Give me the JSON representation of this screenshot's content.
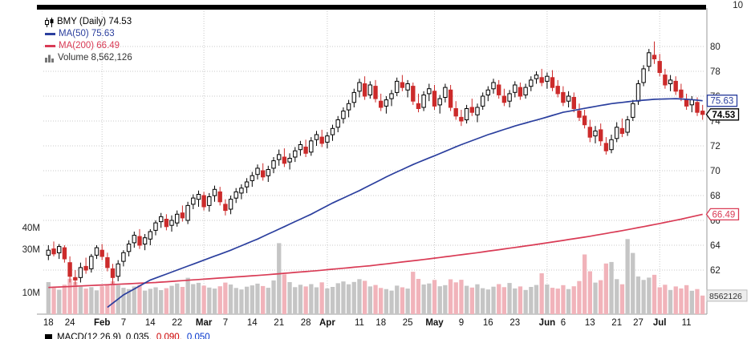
{
  "header": {
    "symbol_label": "BMY (Daily) 74.53",
    "ma50_label": "MA(50) 75.63",
    "ma200_label": "MA(200) 66.49",
    "volume_label": "Volume 8,562,126"
  },
  "axis": {
    "top_partial_label": "10",
    "ma50_box": "75.63",
    "last_price_box": "74.53",
    "ma200_box": "66.49",
    "volume_box": "8562126"
  },
  "footer": {
    "macd": {
      "label": "MACD(12,26,9)",
      "v1": "0.035,",
      "v2": "0.090,",
      "v3": "0.050"
    }
  },
  "colors": {
    "ma50": "#2b3f9e",
    "ma200": "#d93b55",
    "down": "#cc2b2b",
    "up_fill": "#ffffff",
    "up_stroke": "#000000",
    "vol_up": "#c5c5c5",
    "vol_down": "#f1b3ba",
    "grid": "#c9c9c9",
    "axis_text": "#222222",
    "macd_v2": "#cc0000",
    "macd_v3": "#0033cc"
  },
  "chart_data": {
    "type": "candlestick",
    "title": "BMY (Daily)",
    "last_close": 74.53,
    "price_axis": {
      "min": 62,
      "max": 80,
      "step": 2
    },
    "price_ticks": [
      80,
      78,
      76,
      74,
      72,
      70,
      68,
      66,
      64,
      62
    ],
    "volume_ticks": [
      {
        "label": "40M",
        "value": 40
      },
      {
        "label": "30M",
        "value": 30
      },
      {
        "label": "10M",
        "value": 10
      }
    ],
    "grid": "dotted",
    "legend_position": "top-left",
    "candle_fields": [
      "date",
      "open",
      "high",
      "low",
      "close",
      "volume_millions"
    ],
    "month_start_indices": [
      10,
      29,
      52,
      72,
      93,
      114
    ],
    "xticks": [
      {
        "label": "18",
        "i": 0
      },
      {
        "label": "24",
        "i": 4
      },
      {
        "label": "Feb",
        "i": 10,
        "bold": true
      },
      {
        "label": "7",
        "i": 14
      },
      {
        "label": "14",
        "i": 19
      },
      {
        "label": "22",
        "i": 24
      },
      {
        "label": "Mar",
        "i": 29,
        "bold": true
      },
      {
        "label": "7",
        "i": 33
      },
      {
        "label": "14",
        "i": 38
      },
      {
        "label": "21",
        "i": 43
      },
      {
        "label": "28",
        "i": 48
      },
      {
        "label": "Apr",
        "i": 52,
        "bold": true
      },
      {
        "label": "11",
        "i": 58
      },
      {
        "label": "18",
        "i": 62
      },
      {
        "label": "25",
        "i": 67
      },
      {
        "label": "May",
        "i": 72,
        "bold": true
      },
      {
        "label": "9",
        "i": 77
      },
      {
        "label": "16",
        "i": 82
      },
      {
        "label": "23",
        "i": 87
      },
      {
        "label": "Jun",
        "i": 93,
        "bold": true
      },
      {
        "label": "6",
        "i": 96
      },
      {
        "label": "13",
        "i": 101
      },
      {
        "label": "21",
        "i": 106
      },
      {
        "label": "27",
        "i": 110
      },
      {
        "label": "Jul",
        "i": 114,
        "bold": true
      },
      {
        "label": "11",
        "i": 119
      }
    ],
    "ma50": {
      "name": "MA(50)",
      "last": 75.63,
      "points": [
        [
          11,
          59.0
        ],
        [
          14,
          60.0
        ],
        [
          19,
          61.2
        ],
        [
          24,
          62.0
        ],
        [
          29,
          62.8
        ],
        [
          34,
          63.6
        ],
        [
          39,
          64.5
        ],
        [
          44,
          65.5
        ],
        [
          49,
          66.5
        ],
        [
          53,
          67.4
        ],
        [
          58,
          68.4
        ],
        [
          63,
          69.5
        ],
        [
          68,
          70.5
        ],
        [
          72,
          71.2
        ],
        [
          77,
          72.1
        ],
        [
          82,
          72.9
        ],
        [
          87,
          73.6
        ],
        [
          92,
          74.2
        ],
        [
          96,
          74.7
        ],
        [
          101,
          75.1
        ],
        [
          105,
          75.4
        ],
        [
          109,
          75.6
        ],
        [
          113,
          75.75
        ],
        [
          117,
          75.8
        ],
        [
          120,
          75.72
        ],
        [
          122,
          75.63
        ]
      ]
    },
    "ma200": {
      "name": "MA(200)",
      "last": 66.49,
      "points": [
        [
          0,
          60.6
        ],
        [
          10,
          60.8
        ],
        [
          20,
          61.0
        ],
        [
          30,
          61.3
        ],
        [
          40,
          61.6
        ],
        [
          50,
          61.95
        ],
        [
          60,
          62.35
        ],
        [
          70,
          62.85
        ],
        [
          80,
          63.4
        ],
        [
          90,
          64.0
        ],
        [
          100,
          64.65
        ],
        [
          108,
          65.25
        ],
        [
          114,
          65.75
        ],
        [
          118,
          66.1
        ],
        [
          122,
          66.49
        ]
      ]
    },
    "last_volume_millions": 8.56,
    "candles": [
      [
        "Jan 18",
        63.2,
        64.0,
        62.8,
        63.6,
        14.8
      ],
      [
        "Jan 19",
        63.7,
        64.3,
        63.1,
        63.3,
        12.1
      ],
      [
        "Jan 20",
        63.4,
        64.1,
        62.9,
        63.9,
        11.3
      ],
      [
        "Jan 21",
        63.8,
        64.0,
        62.6,
        62.9,
        13.6
      ],
      [
        "Jan 24",
        62.6,
        63.1,
        61.0,
        61.5,
        16.4
      ],
      [
        "Jan 25",
        61.4,
        62.0,
        60.8,
        61.2,
        14.9
      ],
      [
        "Jan 26",
        61.4,
        62.6,
        61.0,
        62.2,
        12.7
      ],
      [
        "Jan 27",
        62.3,
        63.0,
        61.7,
        62.0,
        11.8
      ],
      [
        "Jan 28",
        62.1,
        63.3,
        61.8,
        63.1,
        12.5
      ],
      [
        "Jan 31",
        63.2,
        64.0,
        62.9,
        63.8,
        11.0
      ],
      [
        "Feb 1",
        63.6,
        64.1,
        62.8,
        63.1,
        12.9
      ],
      [
        "Feb 2",
        63.0,
        63.4,
        61.9,
        62.2,
        13.8
      ],
      [
        "Feb 3",
        62.1,
        62.5,
        60.9,
        61.4,
        15.2
      ],
      [
        "Feb 4",
        61.5,
        62.8,
        61.1,
        62.5,
        13.4
      ],
      [
        "Feb 7",
        62.7,
        63.6,
        62.3,
        63.4,
        12.2
      ],
      [
        "Feb 8",
        63.5,
        64.4,
        63.1,
        64.1,
        11.6
      ],
      [
        "Feb 9",
        64.2,
        65.1,
        63.8,
        64.8,
        12.8
      ],
      [
        "Feb 10",
        64.7,
        65.3,
        63.7,
        64.0,
        13.5
      ],
      [
        "Feb 11",
        64.1,
        64.9,
        63.6,
        64.6,
        10.9
      ],
      [
        "Feb 14",
        64.5,
        65.3,
        64.0,
        65.1,
        11.7
      ],
      [
        "Feb 15",
        65.2,
        66.0,
        64.8,
        65.8,
        12.4
      ],
      [
        "Feb 16",
        65.9,
        66.6,
        65.4,
        66.3,
        11.1
      ],
      [
        "Feb 17",
        66.1,
        66.5,
        65.2,
        65.5,
        12.0
      ],
      [
        "Feb 18",
        65.6,
        66.4,
        65.1,
        66.0,
        13.1
      ],
      [
        "Feb 22",
        65.8,
        66.8,
        65.5,
        66.5,
        14.2
      ],
      [
        "Feb 23",
        66.6,
        67.2,
        65.9,
        66.2,
        12.6
      ],
      [
        "Feb 24",
        66.0,
        67.5,
        65.7,
        67.2,
        16.8
      ],
      [
        "Feb 25",
        67.3,
        68.1,
        66.9,
        67.8,
        13.9
      ],
      [
        "Feb 28",
        67.7,
        68.4,
        67.1,
        68.1,
        14.5
      ],
      [
        "Mar 1",
        68.0,
        68.3,
        66.8,
        67.1,
        13.2
      ],
      [
        "Mar 2",
        67.2,
        68.2,
        66.7,
        67.9,
        12.3
      ],
      [
        "Mar 3",
        68.0,
        68.8,
        67.5,
        68.5,
        11.8
      ],
      [
        "Mar 4",
        68.3,
        68.7,
        67.2,
        67.5,
        12.9
      ],
      [
        "Mar 7",
        67.3,
        67.7,
        66.4,
        66.8,
        14.6
      ],
      [
        "Mar 8",
        66.9,
        68.0,
        66.5,
        67.7,
        13.7
      ],
      [
        "Mar 9",
        67.8,
        68.6,
        67.4,
        68.3,
        12.1
      ],
      [
        "Mar 10",
        68.2,
        68.9,
        67.7,
        68.6,
        11.4
      ],
      [
        "Mar 11",
        68.7,
        69.4,
        68.2,
        69.1,
        12.7
      ],
      [
        "Mar 14",
        69.2,
        69.9,
        68.7,
        69.6,
        13.3
      ],
      [
        "Mar 15",
        69.7,
        70.5,
        69.3,
        70.2,
        14.1
      ],
      [
        "Mar 16",
        70.0,
        70.6,
        69.2,
        69.5,
        13.0
      ],
      [
        "Mar 17",
        69.6,
        70.4,
        69.1,
        70.1,
        12.2
      ],
      [
        "Mar 18",
        70.2,
        71.1,
        69.8,
        70.8,
        15.6
      ],
      [
        "Mar 21",
        70.9,
        71.7,
        70.4,
        71.3,
        32.8
      ],
      [
        "Mar 22",
        71.1,
        71.8,
        70.3,
        70.6,
        18.4
      ],
      [
        "Mar 23",
        70.7,
        71.4,
        70.1,
        71.0,
        14.8
      ],
      [
        "Mar 24",
        71.1,
        71.9,
        70.7,
        71.6,
        12.5
      ],
      [
        "Mar 25",
        71.7,
        72.4,
        71.2,
        72.1,
        13.6
      ],
      [
        "Mar 28",
        71.9,
        72.5,
        71.1,
        71.4,
        12.8
      ],
      [
        "Mar 29",
        71.5,
        72.7,
        71.2,
        72.4,
        13.9
      ],
      [
        "Mar 30",
        72.5,
        73.2,
        72.0,
        72.9,
        12.4
      ],
      [
        "Mar 31",
        72.7,
        73.3,
        71.9,
        72.2,
        14.7
      ],
      [
        "Apr 1",
        72.3,
        73.1,
        71.8,
        72.8,
        11.9
      ],
      [
        "Apr 4",
        72.9,
        73.7,
        72.4,
        73.4,
        12.6
      ],
      [
        "Apr 5",
        73.5,
        74.4,
        73.1,
        74.1,
        14.3
      ],
      [
        "Apr 6",
        74.2,
        75.1,
        73.8,
        74.8,
        15.1
      ],
      [
        "Apr 7",
        74.9,
        75.7,
        74.3,
        75.4,
        13.8
      ],
      [
        "Apr 8",
        75.5,
        76.6,
        75.1,
        76.3,
        14.9
      ],
      [
        "Apr 11",
        76.4,
        77.4,
        75.9,
        77.1,
        16.2
      ],
      [
        "Apr 12",
        77.0,
        77.6,
        75.7,
        76.0,
        15.4
      ],
      [
        "Apr 13",
        76.1,
        77.2,
        75.8,
        76.9,
        12.8
      ],
      [
        "Apr 14",
        76.8,
        77.3,
        75.5,
        75.8,
        13.5
      ],
      [
        "Apr 18",
        75.6,
        76.2,
        74.8,
        75.1,
        12.1
      ],
      [
        "Apr 19",
        75.2,
        76.0,
        74.6,
        75.7,
        11.6
      ],
      [
        "Apr 20",
        75.8,
        76.5,
        75.2,
        76.2,
        10.9
      ],
      [
        "Apr 21",
        76.3,
        77.5,
        76.0,
        77.2,
        13.2
      ],
      [
        "Apr 22",
        77.1,
        77.7,
        76.4,
        76.7,
        12.4
      ],
      [
        "Apr 25",
        76.5,
        77.3,
        75.9,
        77.0,
        11.8
      ],
      [
        "Apr 26",
        76.8,
        77.1,
        75.3,
        75.6,
        19.6
      ],
      [
        "Apr 27",
        75.4,
        76.2,
        74.7,
        75.0,
        16.3
      ],
      [
        "Apr 28",
        75.1,
        76.4,
        74.8,
        76.1,
        13.7
      ],
      [
        "Apr 29",
        76.2,
        77.0,
        75.6,
        76.6,
        14.2
      ],
      [
        "May 2",
        76.4,
        76.9,
        74.9,
        75.2,
        15.8
      ],
      [
        "May 3",
        75.3,
        76.1,
        74.6,
        75.8,
        12.9
      ],
      [
        "May 4",
        75.9,
        77.0,
        75.5,
        76.7,
        13.4
      ],
      [
        "May 5",
        76.5,
        76.9,
        74.8,
        75.1,
        16.1
      ],
      [
        "May 6",
        75.0,
        75.6,
        74.1,
        74.4,
        14.7
      ],
      [
        "May 9",
        74.3,
        74.9,
        73.6,
        74.0,
        15.9
      ],
      [
        "May 10",
        74.1,
        75.3,
        73.8,
        75.0,
        13.1
      ],
      [
        "May 11",
        75.1,
        75.8,
        74.4,
        74.7,
        12.3
      ],
      [
        "May 12",
        74.5,
        75.4,
        73.9,
        75.1,
        13.8
      ],
      [
        "May 13",
        75.2,
        76.3,
        74.9,
        76.0,
        12.0
      ],
      [
        "May 16",
        76.1,
        76.8,
        75.6,
        76.5,
        11.4
      ],
      [
        "May 17",
        76.6,
        77.4,
        76.2,
        77.1,
        12.7
      ],
      [
        "May 18",
        76.9,
        77.3,
        75.8,
        76.1,
        13.9
      ],
      [
        "May 19",
        76.0,
        76.6,
        75.2,
        75.5,
        12.5
      ],
      [
        "May 20",
        75.6,
        76.5,
        75.1,
        76.2,
        14.4
      ],
      [
        "May 23",
        76.3,
        77.2,
        75.9,
        76.9,
        11.9
      ],
      [
        "May 24",
        76.7,
        77.1,
        75.7,
        76.0,
        12.8
      ],
      [
        "May 25",
        76.1,
        77.0,
        75.8,
        76.7,
        11.2
      ],
      [
        "May 26",
        76.8,
        77.6,
        76.4,
        77.3,
        12.6
      ],
      [
        "May 27",
        77.4,
        78.0,
        77.0,
        77.7,
        13.5
      ],
      [
        "May 31",
        77.5,
        78.2,
        76.8,
        77.1,
        18.9
      ],
      [
        "Jun 1",
        77.2,
        77.9,
        76.6,
        77.6,
        13.7
      ],
      [
        "Jun 2",
        77.5,
        78.1,
        76.4,
        76.7,
        12.2
      ],
      [
        "Jun 3",
        76.8,
        77.3,
        75.9,
        76.2,
        11.8
      ],
      [
        "Jun 6",
        76.3,
        76.8,
        75.2,
        75.5,
        13.4
      ],
      [
        "Jun 7",
        75.6,
        76.4,
        75.1,
        76.0,
        11.6
      ],
      [
        "Jun 8",
        75.9,
        76.3,
        74.7,
        75.0,
        12.9
      ],
      [
        "Jun 9",
        74.8,
        75.4,
        74.0,
        74.3,
        15.3
      ],
      [
        "Jun 10",
        74.4,
        74.9,
        73.4,
        73.7,
        27.6
      ],
      [
        "Jun 13",
        73.5,
        74.1,
        72.3,
        72.7,
        19.8
      ],
      [
        "Jun 14",
        72.8,
        73.6,
        72.2,
        73.2,
        14.6
      ],
      [
        "Jun 15",
        73.3,
        73.8,
        72.0,
        72.4,
        15.7
      ],
      [
        "Jun 16",
        72.2,
        72.7,
        71.3,
        71.6,
        23.4
      ],
      [
        "Jun 17",
        71.7,
        72.9,
        71.4,
        72.5,
        24.1
      ],
      [
        "Jun 21",
        72.6,
        73.9,
        72.3,
        73.5,
        16.2
      ],
      [
        "Jun 22",
        73.4,
        74.2,
        72.7,
        73.0,
        13.8
      ],
      [
        "Jun 23",
        73.1,
        74.4,
        72.8,
        74.1,
        34.7
      ],
      [
        "Jun 24",
        74.3,
        75.7,
        74.0,
        75.4,
        28.3
      ],
      [
        "Jun 27",
        75.6,
        77.3,
        75.3,
        77.0,
        17.4
      ],
      [
        "Jun 28",
        77.1,
        78.5,
        76.8,
        78.2,
        15.8
      ],
      [
        "Jun 29",
        78.4,
        79.8,
        78.0,
        79.5,
        16.9
      ],
      [
        "Jun 30",
        79.3,
        80.4,
        78.6,
        79.0,
        18.2
      ],
      [
        "Jul 1",
        78.8,
        79.4,
        77.6,
        77.9,
        12.4
      ],
      [
        "Jul 5",
        77.7,
        78.2,
        76.6,
        76.9,
        13.6
      ],
      [
        "Jul 6",
        77.0,
        77.7,
        76.4,
        77.3,
        11.2
      ],
      [
        "Jul 7",
        77.2,
        77.6,
        76.1,
        76.4,
        12.8
      ],
      [
        "Jul 8",
        76.5,
        77.0,
        75.6,
        75.9,
        11.9
      ],
      [
        "Jul 11",
        75.7,
        76.2,
        74.9,
        75.2,
        13.4
      ],
      [
        "Jul 12",
        75.3,
        76.0,
        74.7,
        75.7,
        10.8
      ],
      [
        "Jul 13",
        75.5,
        75.9,
        74.4,
        74.7,
        11.6
      ],
      [
        "Jul 14",
        74.8,
        75.3,
        74.1,
        74.53,
        8.6
      ]
    ]
  }
}
